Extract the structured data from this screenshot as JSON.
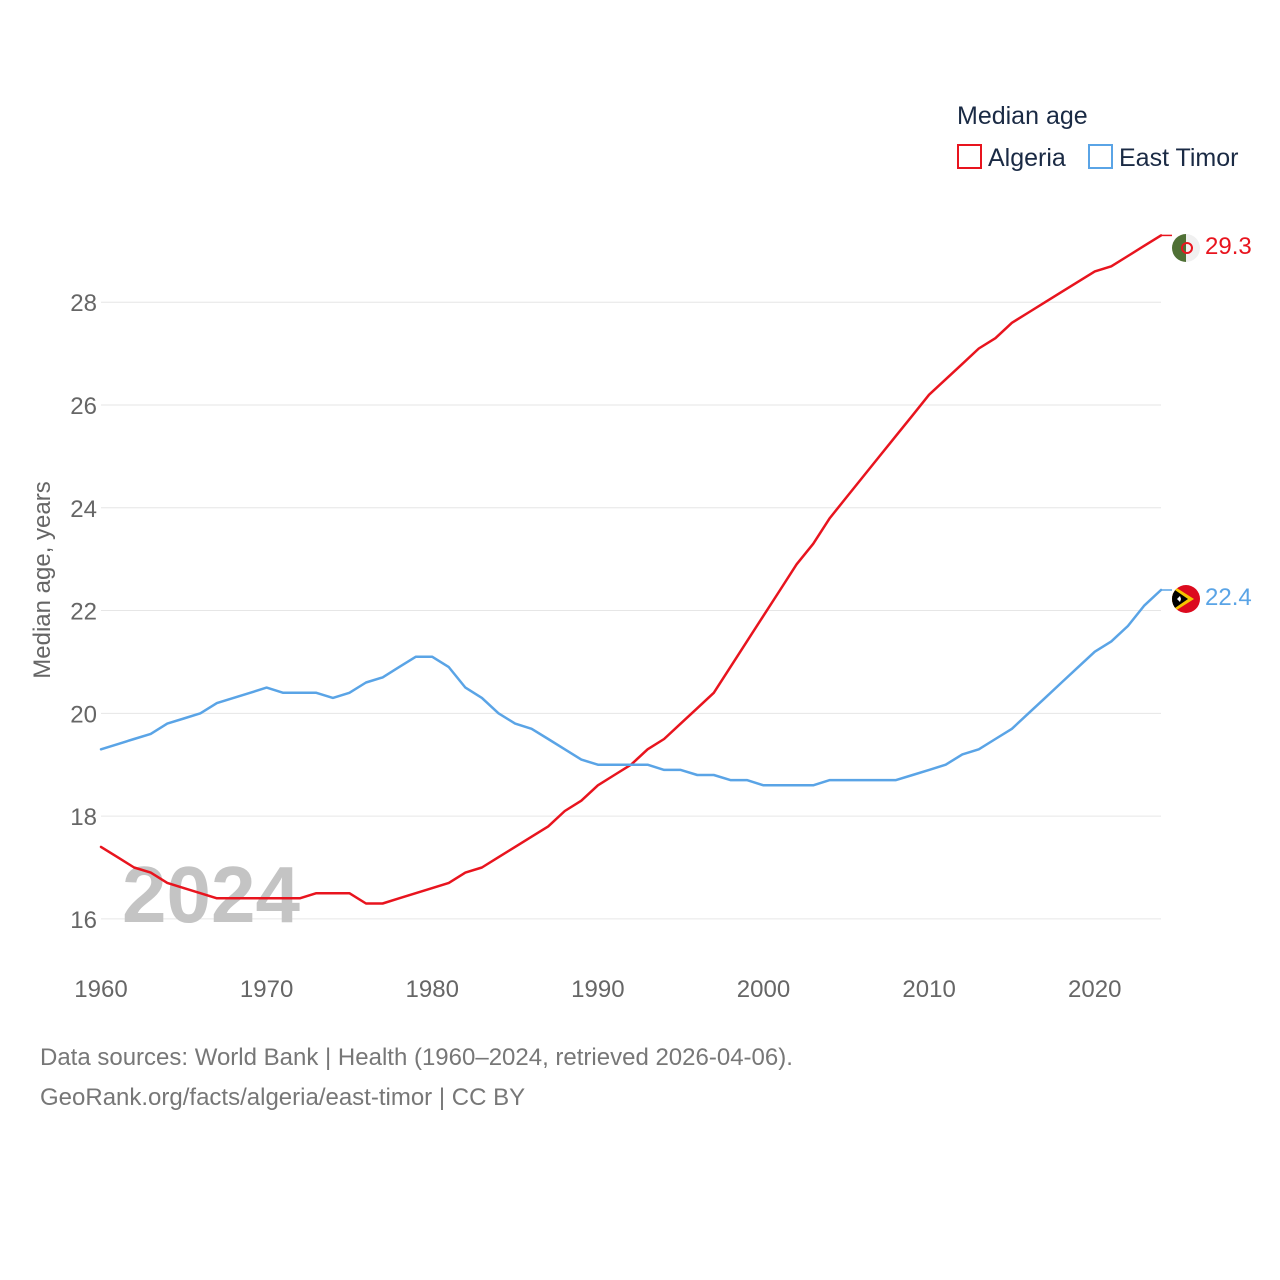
{
  "chart_data": {
    "type": "line",
    "title": "Median age",
    "ylabel": "Median age, years",
    "xlabel": "",
    "xlim": [
      1960,
      2024
    ],
    "ylim": [
      15.2,
      29.6
    ],
    "x_ticks": [
      1960,
      1970,
      1980,
      1990,
      2000,
      2010,
      2020
    ],
    "y_ticks": [
      16,
      18,
      20,
      22,
      24,
      26,
      28
    ],
    "grid": true,
    "legend_position": "top-right",
    "current_year_label": "2024",
    "x": [
      1960,
      1961,
      1962,
      1963,
      1964,
      1965,
      1966,
      1967,
      1968,
      1969,
      1970,
      1971,
      1972,
      1973,
      1974,
      1975,
      1976,
      1977,
      1978,
      1979,
      1980,
      1981,
      1982,
      1983,
      1984,
      1985,
      1986,
      1987,
      1988,
      1989,
      1990,
      1991,
      1992,
      1993,
      1994,
      1995,
      1996,
      1997,
      1998,
      1999,
      2000,
      2001,
      2002,
      2003,
      2004,
      2005,
      2006,
      2007,
      2008,
      2009,
      2010,
      2011,
      2012,
      2013,
      2014,
      2015,
      2016,
      2017,
      2018,
      2019,
      2020,
      2021,
      2022,
      2023,
      2024
    ],
    "series": [
      {
        "name": "Algeria",
        "color": "#e8141e",
        "end_label": "29.3",
        "values": [
          17.4,
          17.2,
          17.0,
          16.9,
          16.7,
          16.6,
          16.5,
          16.4,
          16.4,
          16.4,
          16.4,
          16.4,
          16.4,
          16.5,
          16.5,
          16.5,
          16.3,
          16.3,
          16.4,
          16.5,
          16.6,
          16.7,
          16.9,
          17.0,
          17.2,
          17.4,
          17.6,
          17.8,
          18.1,
          18.3,
          18.6,
          18.8,
          19.0,
          19.3,
          19.5,
          19.8,
          20.1,
          20.4,
          20.9,
          21.4,
          21.9,
          22.4,
          22.9,
          23.3,
          23.8,
          24.2,
          24.6,
          25.0,
          25.4,
          25.8,
          26.2,
          26.5,
          26.8,
          27.1,
          27.3,
          27.6,
          27.8,
          28.0,
          28.2,
          28.4,
          28.6,
          28.7,
          28.9,
          29.1,
          29.3
        ]
      },
      {
        "name": "East Timor",
        "color": "#5aa4e6",
        "end_label": "22.4",
        "values": [
          19.3,
          19.4,
          19.5,
          19.6,
          19.8,
          19.9,
          20.0,
          20.2,
          20.3,
          20.4,
          20.5,
          20.4,
          20.4,
          20.4,
          20.3,
          20.4,
          20.6,
          20.7,
          20.9,
          21.1,
          21.1,
          20.9,
          20.5,
          20.3,
          20.0,
          19.8,
          19.7,
          19.5,
          19.3,
          19.1,
          19.0,
          19.0,
          19.0,
          19.0,
          18.9,
          18.9,
          18.8,
          18.8,
          18.7,
          18.7,
          18.6,
          18.6,
          18.6,
          18.6,
          18.7,
          18.7,
          18.7,
          18.7,
          18.7,
          18.8,
          18.9,
          19.0,
          19.2,
          19.3,
          19.5,
          19.7,
          20.0,
          20.3,
          20.6,
          20.9,
          21.2,
          21.4,
          21.7,
          22.1,
          22.4
        ]
      }
    ]
  },
  "legend": {
    "title": "Median age",
    "items": [
      {
        "label": "Algeria",
        "color": "#e8141e"
      },
      {
        "label": "East Timor",
        "color": "#5aa4e6"
      }
    ]
  },
  "flags": {
    "algeria": {
      "icon": "algeria-flag-icon",
      "colors": [
        "#4f7035",
        "#f0f0f0",
        "#e8141e"
      ]
    },
    "east_timor": {
      "icon": "east-timor-flag-icon",
      "colors": [
        "#dc0a1e",
        "#f5c400",
        "#000000",
        "#ffffff"
      ]
    }
  },
  "sources": {
    "line1": "Data sources: World Bank | Health (1960–2024, retrieved 2026-04-06).",
    "line2": "GeoRank.org/facts/algeria/east-timor | CC BY"
  }
}
